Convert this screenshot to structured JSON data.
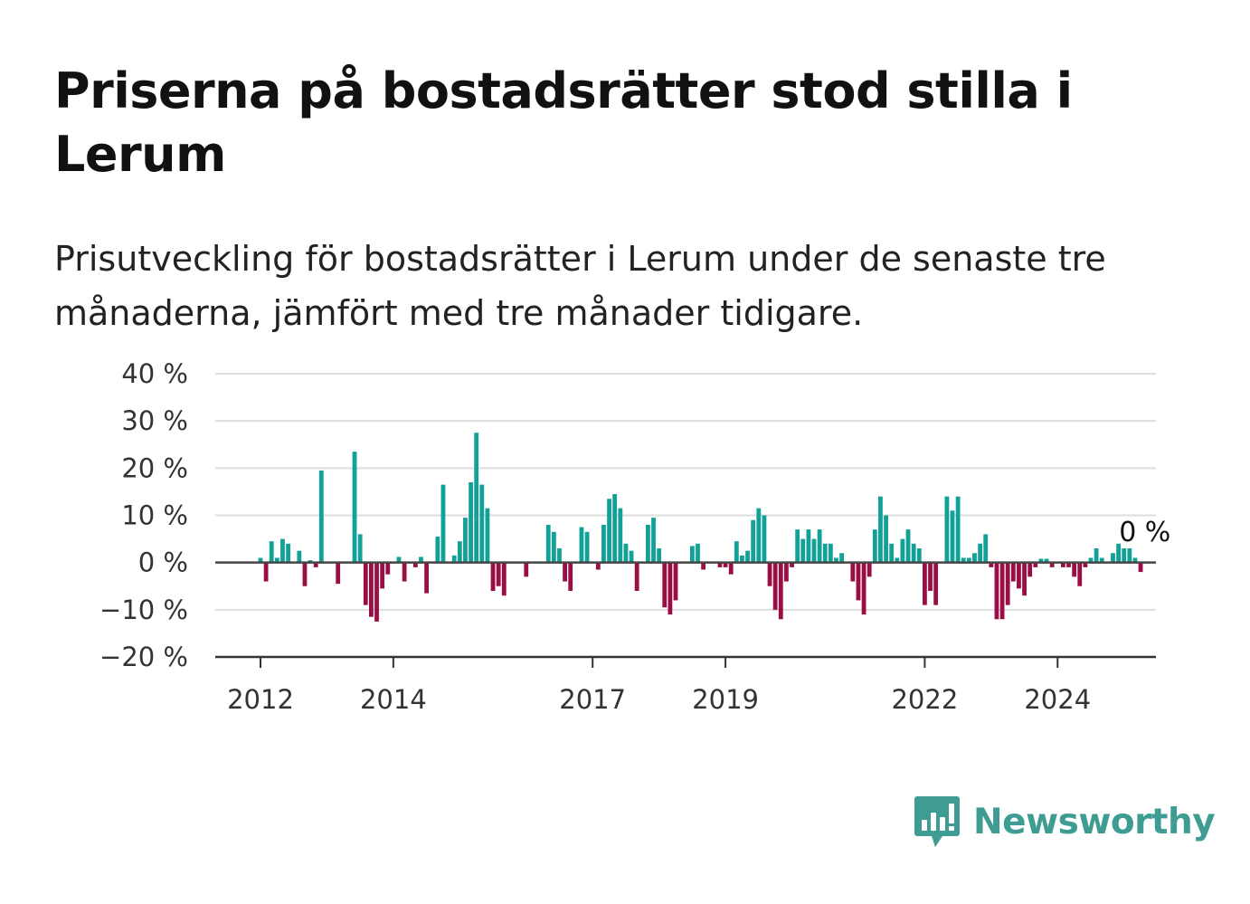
{
  "title": "Priserna på bostadsrätter stod stilla i Lerum",
  "subtitle": "Prisutveckling för bostadsrätter i Lerum under de senaste tre månaderna, jämfört med tre månader tidigare.",
  "brand": {
    "name": "Newsworthy",
    "color": "#3f9c92",
    "icon": "bar-chart-speech-bubble-icon"
  },
  "chart_data": {
    "type": "bar",
    "title": "",
    "xlabel": "",
    "ylabel": "",
    "x_start": "2012-01",
    "ylim": [
      -20,
      40
    ],
    "y_ticks": [
      40,
      30,
      20,
      10,
      0,
      -10,
      -20
    ],
    "y_tick_labels": [
      "40 %",
      "30 %",
      "20 %",
      "10 %",
      "0 %",
      "−10 %",
      "−20 %"
    ],
    "x_ticks": [
      {
        "month": "2012-01",
        "label": "2012"
      },
      {
        "month": "2014-01",
        "label": "2014"
      },
      {
        "month": "2017-01",
        "label": "2017"
      },
      {
        "month": "2019-01",
        "label": "2019"
      },
      {
        "month": "2022-01",
        "label": "2022"
      },
      {
        "month": "2024-01",
        "label": "2024"
      }
    ],
    "grid": true,
    "colors": {
      "positive": "#11a197",
      "negative": "#9b0d45"
    },
    "last_value_label": "0 %",
    "values": [
      1,
      -4,
      4.5,
      1,
      5,
      4,
      0,
      2.5,
      -5,
      0.5,
      -1,
      19.5,
      0,
      0,
      -4.5,
      0,
      0,
      23.5,
      6,
      -9,
      -11.5,
      -12.5,
      -5.5,
      -2.5,
      0,
      1.2,
      -4,
      0,
      -1,
      1.2,
      -6.5,
      0,
      5.5,
      16.5,
      0,
      1.5,
      4.5,
      9.5,
      17,
      27.5,
      16.5,
      11.5,
      -6,
      -5,
      -7,
      0,
      0,
      0,
      -3,
      0,
      0,
      0,
      8,
      6.5,
      3,
      -4,
      -6,
      0,
      7.5,
      6.5,
      0,
      -1.5,
      8,
      13.5,
      14.5,
      11.5,
      4,
      2.5,
      -6,
      0,
      8,
      9.5,
      3,
      -9.5,
      -11,
      -8,
      0,
      0,
      3.5,
      4,
      -1.5,
      0,
      0,
      -1,
      -1,
      -2.5,
      4.5,
      1.5,
      2.5,
      9,
      11.5,
      10,
      -5,
      -10,
      -12,
      -4,
      -1,
      7,
      5,
      7,
      5,
      7,
      4,
      4,
      1,
      2,
      0,
      -4,
      -8,
      -11,
      -3,
      7,
      14,
      10,
      4,
      1,
      5,
      7,
      4,
      3,
      -9,
      -6,
      -9,
      0,
      14,
      11,
      14,
      1,
      1,
      2,
      4,
      6,
      -1,
      -12,
      -12,
      -9,
      -4,
      -5.5,
      -7,
      -3,
      -1,
      0.8,
      0.8,
      -1,
      0,
      -1,
      -1,
      -3,
      -5,
      -1,
      1,
      3,
      1,
      0,
      2,
      4,
      3,
      3,
      1,
      -2,
      0
    ]
  }
}
